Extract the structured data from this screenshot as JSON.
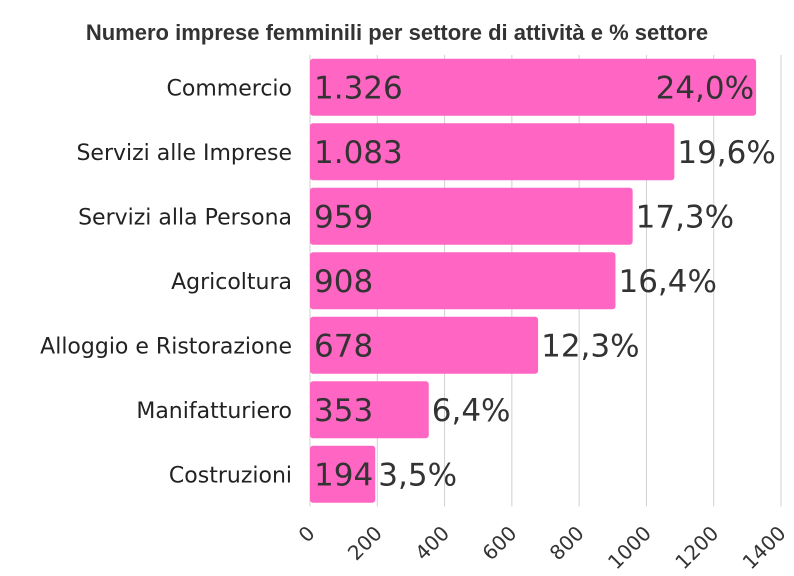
{
  "chart_data": {
    "type": "bar",
    "orientation": "horizontal",
    "title": "Numero imprese femminili per settore di attività e % settore",
    "categories": [
      "Commercio",
      "Servizi alle Imprese",
      "Servizi alla Persona",
      "Agricoltura",
      "Alloggio e Ristorazione",
      "Manifatturiero",
      "Costruzioni"
    ],
    "values": [
      1326,
      1083,
      959,
      908,
      678,
      353,
      194
    ],
    "value_labels": [
      "1.326",
      "1.083",
      "959",
      "908",
      "678",
      "353",
      "194"
    ],
    "percent_labels": [
      "24,0%",
      "19,6%",
      "17,3%",
      "16,4%",
      "12,3%",
      "6,4%",
      "3,5%"
    ],
    "xlim": [
      0,
      1400
    ],
    "x_ticks": [
      0,
      200,
      400,
      600,
      800,
      1000,
      1200,
      1400
    ],
    "grid": true,
    "bar_color": "#ff66c4",
    "legend": "none"
  }
}
